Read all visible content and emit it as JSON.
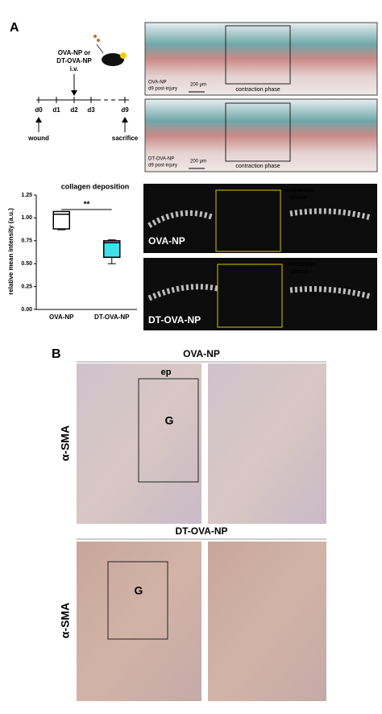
{
  "panel_a": {
    "label": "A",
    "treatment": [
      "OVA-NP or",
      "DT-OVA-NP",
      "i.v."
    ],
    "timeline": [
      "d0",
      "d1",
      "d2",
      "d3",
      "d9"
    ],
    "events": [
      "wound",
      "sacrifice"
    ],
    "histology": [
      {
        "group": "OVA-NP",
        "timepoint": "d9 post-injury",
        "scale": "200 μm",
        "region": "contraction phase"
      },
      {
        "group": "DT-OVA-NP",
        "timepoint": "d9 post-injury",
        "scale": "200 μm",
        "region": "contraction phase"
      }
    ],
    "fluorescence": [
      {
        "group": "OVA-NP",
        "region": [
          "contraction",
          "phase"
        ]
      },
      {
        "group": "DT-OVA-NP",
        "region": [
          "contraction",
          "phase"
        ]
      }
    ]
  },
  "chart_data": {
    "type": "box",
    "title": "collagen deposition",
    "ylabel": "relative mean intensity (a.u.)",
    "categories": [
      "OVA-NP",
      "DT-OVA-NP"
    ],
    "boxes": [
      {
        "min": 0.87,
        "q1": 0.88,
        "median": 1.04,
        "q3": 1.07,
        "max": 1.07
      },
      {
        "min": 0.5,
        "q1": 0.57,
        "median": 0.73,
        "q3": 0.75,
        "max": 0.76
      }
    ],
    "colors": [
      "#ffffff",
      "#3fe0ea"
    ],
    "ylim": [
      0,
      1.25
    ],
    "yticks": [
      {
        "value": 0,
        "label": "0.00"
      },
      {
        "value": 0.25,
        "label": "0.25"
      },
      {
        "value": 0.5,
        "label": "0.50"
      },
      {
        "value": 0.75,
        "label": "0.75"
      },
      {
        "value": 1,
        "label": "1.00"
      },
      {
        "value": 1.25,
        "label": "1.25"
      }
    ],
    "annotation": "**"
  },
  "panel_b": {
    "label": "B",
    "stain": "α-SMA",
    "rows": [
      {
        "group": "OVA-NP",
        "markers": [
          "ep",
          "G"
        ]
      },
      {
        "group": "DT-OVA-NP",
        "markers": [
          "G"
        ]
      }
    ]
  }
}
